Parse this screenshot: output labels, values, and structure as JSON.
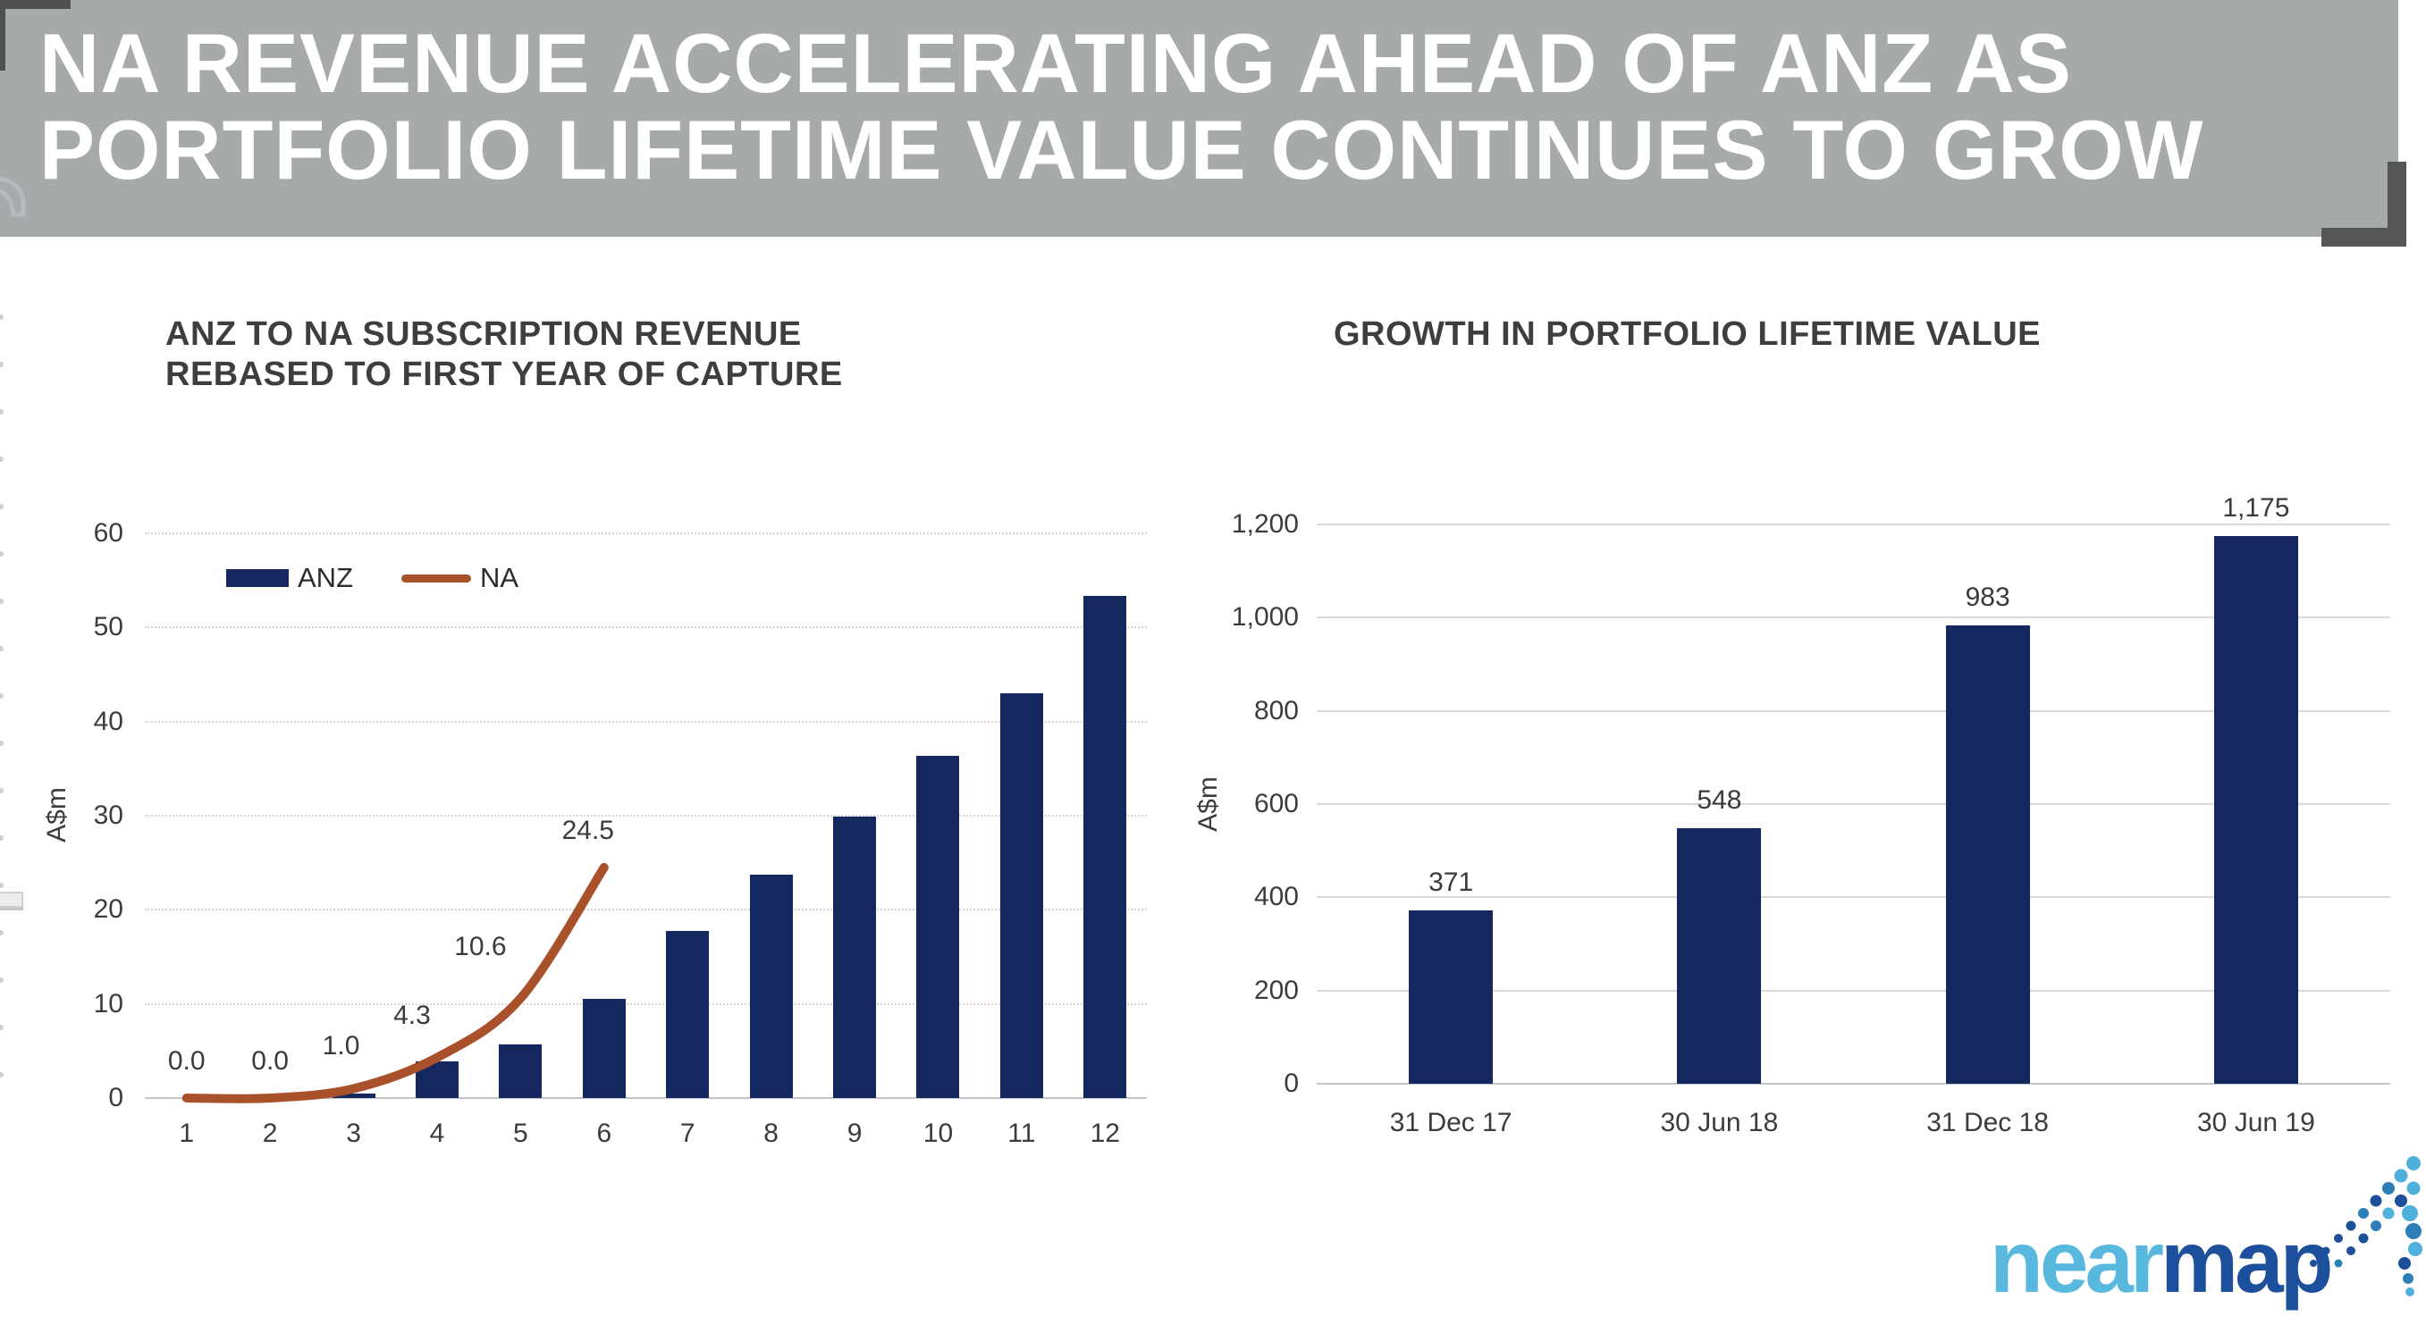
{
  "header": {
    "title_line1": "NA REVENUE ACCELERATING AHEAD OF ANZ AS",
    "title_line2": "PORTFOLIO LIFETIME VALUE CONTINUES TO GROW"
  },
  "colors": {
    "header_bg": "#a7aaab",
    "corner_bracket": "#515254",
    "bar_navy": "#14285f",
    "line_orange": "#a9512b",
    "gridline": "#d7d7d7",
    "title_text": "#3d3e40",
    "logo_near_blue": "#58b8de",
    "logo_map_blue": "#1c4f9c"
  },
  "chart_data": [
    {
      "type": "bar",
      "title": "ANZ TO NA SUBSCRIPTION REVENUE REBASED TO FIRST YEAR OF CAPTURE",
      "title_lines": [
        "ANZ TO NA SUBSCRIPTION REVENUE",
        "REBASED TO FIRST YEAR OF CAPTURE"
      ],
      "categories": [
        "1",
        "2",
        "3",
        "4",
        "5",
        "6",
        "7",
        "8",
        "9",
        "10",
        "11",
        "12"
      ],
      "series": [
        {
          "name": "ANZ",
          "kind": "bar",
          "color": "#14285f",
          "values": [
            0,
            0,
            0.5,
            3.9,
            5.7,
            10.5,
            17.8,
            23.7,
            29.9,
            36.4,
            43.0,
            53.4
          ]
        },
        {
          "name": "NA",
          "kind": "line",
          "color": "#a9512b",
          "values": [
            0.0,
            0.0,
            1.0,
            4.3,
            10.6,
            24.5
          ],
          "labels": [
            "0.0",
            "0.0",
            "1.0",
            "4.3",
            "10.6",
            "24.5"
          ]
        }
      ],
      "xlabel": "",
      "ylabel": "A$m",
      "ylim": [
        0,
        60
      ],
      "ytick_step": 10,
      "grid": true,
      "legend_position": "inside top-left"
    },
    {
      "type": "bar",
      "title": "GROWTH IN PORTFOLIO LIFETIME VALUE",
      "categories": [
        "31 Dec 17",
        "30 Jun 18",
        "31 Dec 18",
        "30 Jun 19"
      ],
      "values": [
        371,
        548,
        983,
        1175
      ],
      "labels": [
        "371",
        "548",
        "983",
        "1,175"
      ],
      "xlabel": "",
      "ylabel": "A$m",
      "ylim": [
        0,
        1200
      ],
      "ytick_step": 200,
      "yticklabels": [
        "0",
        "200",
        "400",
        "600",
        "800",
        "1,000",
        "1,200"
      ],
      "grid": true,
      "legend_position": "none"
    }
  ],
  "logo": {
    "near": "near",
    "map": "map"
  }
}
